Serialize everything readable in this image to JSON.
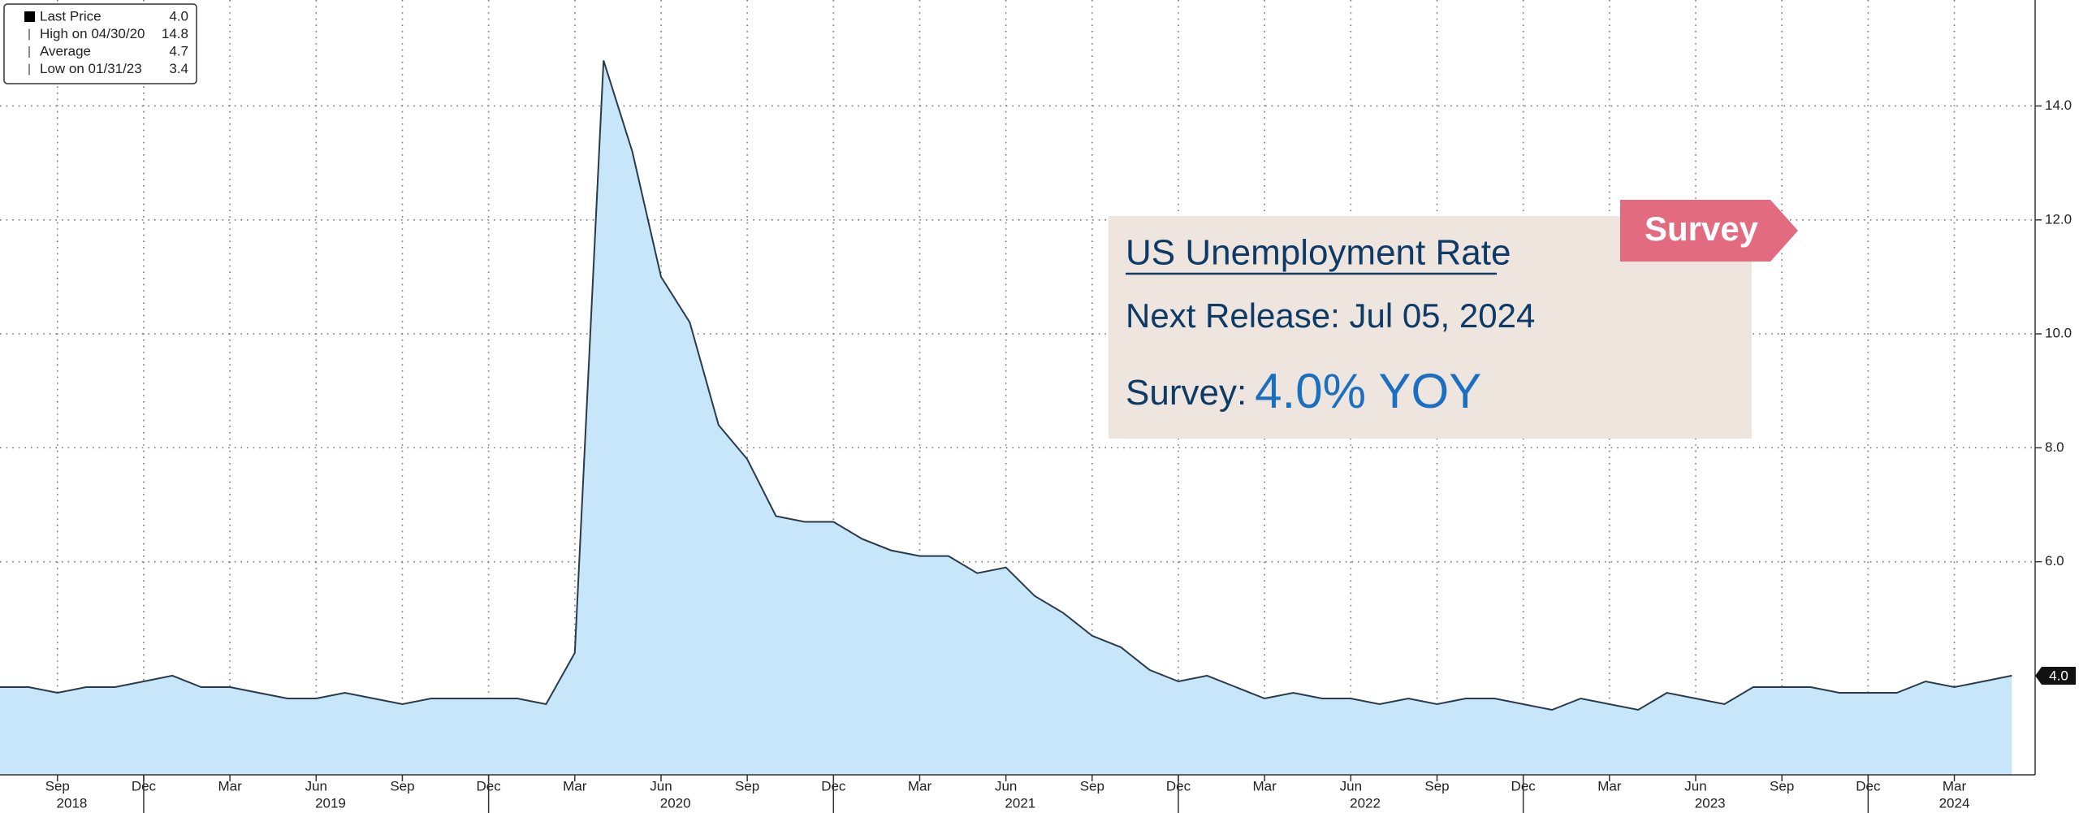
{
  "chart_data": {
    "type": "area",
    "values": [
      3.8,
      3.8,
      3.7,
      3.8,
      3.8,
      3.9,
      4.0,
      3.8,
      3.8,
      3.7,
      3.6,
      3.6,
      3.7,
      3.6,
      3.5,
      3.6,
      3.6,
      3.6,
      3.6,
      3.5,
      4.4,
      14.8,
      13.2,
      11.0,
      10.2,
      8.4,
      7.8,
      6.8,
      6.7,
      6.7,
      6.4,
      6.2,
      6.1,
      6.1,
      5.8,
      5.9,
      5.4,
      5.1,
      4.7,
      4.5,
      4.1,
      3.9,
      4.0,
      3.8,
      3.6,
      3.7,
      3.6,
      3.6,
      3.5,
      3.6,
      3.5,
      3.6,
      3.6,
      3.5,
      3.4,
      3.6,
      3.5,
      3.4,
      3.7,
      3.6,
      3.5,
      3.8,
      3.8,
      3.8,
      3.7,
      3.7,
      3.7,
      3.9,
      3.8,
      3.9,
      4.0
    ],
    "categories": [
      null,
      null,
      "Sep",
      null,
      null,
      "Dec",
      null,
      null,
      "Mar",
      null,
      null,
      "Jun",
      null,
      null,
      "Sep",
      null,
      null,
      "Dec",
      null,
      null,
      "Mar",
      null,
      null,
      "Jun",
      null,
      null,
      "Sep",
      null,
      null,
      "Dec",
      null,
      null,
      "Mar",
      null,
      null,
      "Jun",
      null,
      null,
      "Sep",
      null,
      null,
      "Dec",
      null,
      null,
      "Mar",
      null,
      null,
      "Jun",
      null,
      null,
      "Sep",
      null,
      null,
      "Dec",
      null,
      null,
      "Mar",
      null,
      null,
      "Jun",
      null,
      null,
      "Sep",
      null,
      null,
      "Dec",
      null,
      null,
      "Mar",
      null,
      null
    ],
    "x_groups": [
      {
        "label": "2018",
        "count": 6
      },
      {
        "label": "2019",
        "count": 12
      },
      {
        "label": "2020",
        "count": 12
      },
      {
        "label": "2021",
        "count": 12
      },
      {
        "label": "2022",
        "count": 12
      },
      {
        "label": "2023",
        "count": 12
      },
      {
        "label": "2024",
        "count": 5
      }
    ],
    "color": "#c8e6fa",
    "line_color": "#2a3a4a",
    "ylim": [
      2.26,
      15.86
    ],
    "yticks": [
      {
        "value": 6,
        "label": "6.0"
      },
      {
        "value": 8,
        "label": "8.0"
      },
      {
        "value": 10,
        "label": "10.0"
      },
      {
        "value": 12,
        "label": "12.0"
      },
      {
        "value": 14,
        "label": "14.0"
      }
    ],
    "grid": true,
    "legend": [
      {
        "name": "Last Price",
        "value": 4.0,
        "value_label": "4.0"
      },
      {
        "name": "High on 04/30/20",
        "value": 14.8,
        "value_label": "14.8"
      },
      {
        "name": "Average",
        "value": 4.7,
        "value_label": "4.7"
      },
      {
        "name": "Low on 01/31/23",
        "value": 3.4,
        "value_label": "3.4"
      }
    ],
    "last_value": {
      "value": 4.0,
      "label": "4.0"
    },
    "annotation": {
      "title": "US Unemployment Rate",
      "next_release": "Next Release: Jul 05, 2024",
      "survey_prefix": "Survey:",
      "survey_value": "4.0% YOY",
      "tag": "Survey"
    }
  }
}
